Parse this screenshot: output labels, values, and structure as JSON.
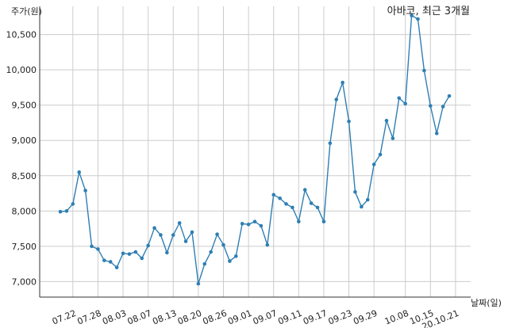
{
  "chart_data": {
    "type": "line",
    "title": "아바코, 최근 3개월",
    "ylabel": "주가(원)",
    "xlabel": "날짜(일)",
    "ylim": [
      6780,
      10900
    ],
    "y_ticks": [
      7000,
      7500,
      8000,
      8500,
      9000,
      9500,
      10000,
      10500
    ],
    "y_tick_labels": [
      "7,000",
      "7,500",
      "8,000",
      "8,500",
      "9,000",
      "9,500",
      "10,000",
      "10,500"
    ],
    "x_tick_labels": [
      "07.22",
      "07.28",
      "08.03",
      "08.07",
      "08.13",
      "08.20",
      "08.26",
      "09.01",
      "09.07",
      "09.11",
      "09.17",
      "09.23",
      "09.29",
      "10.08",
      "10.15",
      "20.10.21"
    ],
    "x_tick_index": [
      2,
      6,
      10,
      14,
      18,
      22,
      26,
      30,
      34,
      38,
      42,
      46,
      50,
      55,
      59,
      63
    ],
    "grid": true,
    "color": "#2e7fb3",
    "values": [
      7990,
      8000,
      8100,
      8550,
      8290,
      7500,
      7460,
      7300,
      7280,
      7200,
      7400,
      7390,
      7420,
      7330,
      7510,
      7760,
      7660,
      7410,
      7660,
      7830,
      7570,
      7700,
      6970,
      7250,
      7420,
      7670,
      7520,
      7290,
      7360,
      7820,
      7810,
      7850,
      7790,
      7520,
      8230,
      8180,
      8100,
      8050,
      7850,
      8300,
      8110,
      8050,
      7850,
      8960,
      9580,
      9820,
      9270,
      8270,
      8060,
      8160,
      8660,
      8800,
      9280,
      9030,
      9600,
      9520,
      10770,
      10720,
      9990,
      9490,
      9100,
      9480,
      9630
    ]
  }
}
